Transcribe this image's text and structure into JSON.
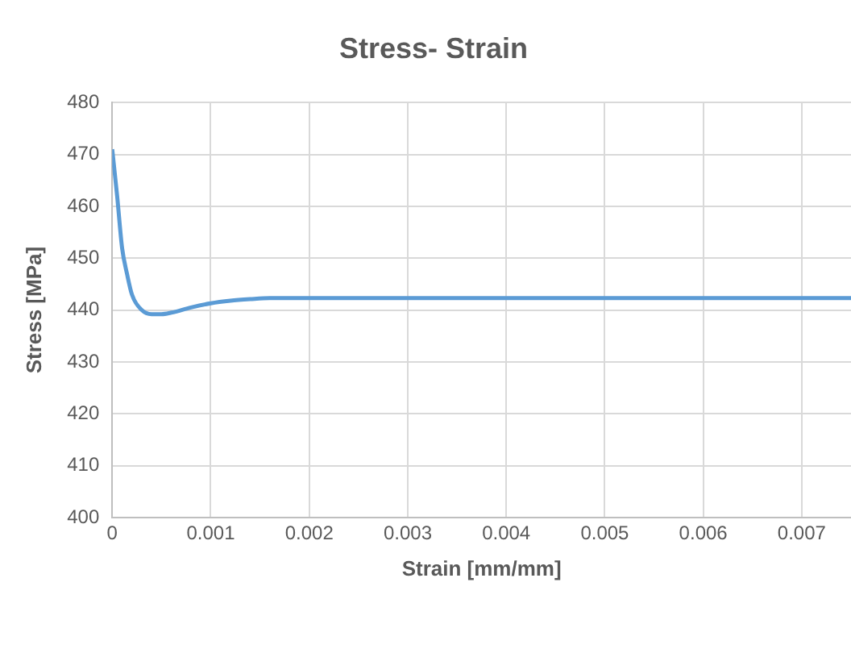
{
  "chart_data": {
    "type": "line",
    "title": "Stress- Strain",
    "xlabel": "Strain [mm/mm]",
    "ylabel": "Stress [MPa]",
    "x": [
      0,
      5e-05,
      0.0001,
      0.00015,
      0.0002,
      0.0003,
      0.0004,
      0.0005,
      0.0006,
      0.0008,
      0.001,
      0.0012,
      0.0014,
      0.0016,
      0.002,
      0.003,
      0.004,
      0.005,
      0.006,
      0.007,
      0.0075
    ],
    "series": [
      {
        "color": "#5b9bd5",
        "values": [
          471,
          462,
          452,
          447,
          443,
          440,
          439.2,
          439.2,
          439.5,
          440.5,
          441.3,
          441.8,
          442.1,
          442.3,
          442.3,
          442.3,
          442.3,
          442.3,
          442.3,
          442.3,
          442.3
        ]
      }
    ],
    "xlim": [
      0,
      0.0075
    ],
    "xticks": [
      0,
      0.001,
      0.002,
      0.003,
      0.004,
      0.005,
      0.006,
      0.007
    ],
    "ylim": [
      400,
      480
    ],
    "yticks": [
      400,
      410,
      420,
      430,
      440,
      450,
      460,
      470,
      480
    ],
    "grid": true,
    "legend": false,
    "marker": "none",
    "line_style": "solid"
  }
}
